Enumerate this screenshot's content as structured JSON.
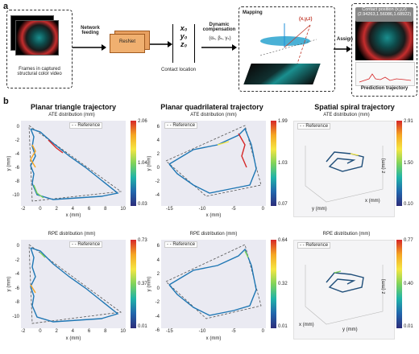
{
  "panel_a": {
    "label": "a",
    "frames_caption": "Frames in captured structural color video",
    "network_feeding": "Network feeding",
    "resnet": "ResNet",
    "vec": [
      "x₀",
      "y₀",
      "z₀"
    ],
    "dynamic_comp": "Dynamic compensation",
    "dyn_params": "(αₛ, βₛ, γₛ)",
    "contact_location": "Contact location",
    "mapping": "Mapping",
    "xyz": "(x,y,z)",
    "assign": "Assign",
    "contact_position": "Contact position (x,y,z)",
    "contact_values": "(2.94263,1.56086,1.68922)",
    "prediction": "Prediction trajectory"
  },
  "panel_b": {
    "label": "b",
    "titles": [
      "Planar triangle trajectory",
      "Planar quadrilateral trajectory",
      "Spatial spiral trajectory"
    ],
    "ate": "ATE distribution (mm)",
    "rpe": "RPE distribution (mm)",
    "reference": "Reference",
    "xlabel": "x (mm)",
    "ylabel": "y (mm)",
    "zlabel": "z (mm)",
    "tri_y": [
      "0",
      "-2",
      "-4",
      "-6",
      "-8",
      "-10",
      "-12"
    ],
    "tri_x": [
      "-2",
      "0",
      "2",
      "4",
      "6",
      "8",
      "10"
    ],
    "quad_y": [
      "6",
      "4",
      "2",
      "0",
      "-2",
      "-4",
      "-6"
    ],
    "quad_x": [
      "-15",
      "-10",
      "-5",
      "0"
    ],
    "cb_tri_ate": [
      "2.06",
      "1.04",
      "0.03"
    ],
    "cb_quad_ate": [
      "1.99",
      "1.03",
      "0.07"
    ],
    "cb_sp_ate": [
      "2.91",
      "1.50",
      "0.10"
    ],
    "cb_tri_rpe": [
      "0.73",
      "0.37",
      "0.01"
    ],
    "cb_quad_rpe": [
      "0.64",
      "0.32",
      "0.01"
    ],
    "cb_sp_rpe": [
      "0.77",
      "0.40",
      "0.01"
    ]
  }
}
